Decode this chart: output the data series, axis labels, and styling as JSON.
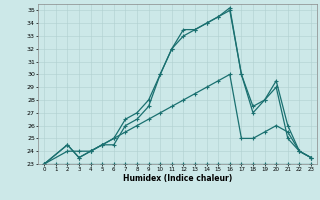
{
  "xlabel": "Humidex (Indice chaleur)",
  "xlim": [
    -0.5,
    23.5
  ],
  "ylim": [
    23,
    35.5
  ],
  "xticks": [
    0,
    1,
    2,
    3,
    4,
    5,
    6,
    7,
    8,
    9,
    10,
    11,
    12,
    13,
    14,
    15,
    16,
    17,
    18,
    19,
    20,
    21,
    22,
    23
  ],
  "yticks": [
    23,
    24,
    25,
    26,
    27,
    28,
    29,
    30,
    31,
    32,
    33,
    34,
    35
  ],
  "background_color": "#cce8e8",
  "grid_color": "#b0d0d0",
  "line_color": "#1a7070",
  "line1_x": [
    0,
    1,
    2,
    3,
    4,
    5,
    6,
    7,
    8,
    9,
    10,
    11,
    12,
    13,
    14,
    15,
    16,
    17,
    18,
    19,
    20,
    21,
    22,
    23
  ],
  "line1_y": [
    23,
    23,
    23,
    23,
    23,
    23,
    23,
    23,
    23,
    23,
    23,
    23,
    23,
    23,
    23,
    23,
    23,
    23,
    23,
    23,
    23,
    23,
    23,
    23
  ],
  "line2_x": [
    0,
    2,
    3,
    4,
    5,
    6,
    7,
    8,
    9,
    10,
    11,
    12,
    13,
    14,
    15,
    16,
    17,
    18,
    19,
    20,
    21,
    22,
    23
  ],
  "line2_y": [
    23,
    24,
    24,
    24,
    24.5,
    25,
    25.5,
    26,
    26.5,
    27,
    27.5,
    28,
    28.5,
    29,
    29.5,
    30,
    25,
    25,
    25.5,
    26,
    25.5,
    24,
    23.5
  ],
  "line3_x": [
    0,
    2,
    3,
    4,
    5,
    6,
    7,
    8,
    9,
    10,
    11,
    12,
    13,
    14,
    15,
    16,
    17,
    18,
    19,
    20,
    21,
    22,
    23
  ],
  "line3_y": [
    23,
    24.5,
    23.5,
    24,
    24.5,
    25,
    26.5,
    27,
    28,
    30,
    32,
    33,
    33.5,
    34,
    34.5,
    35,
    30,
    27.5,
    28,
    29.5,
    26,
    24,
    23.5
  ],
  "line4_x": [
    0,
    2,
    3,
    4,
    5,
    6,
    7,
    8,
    9,
    10,
    11,
    12,
    13,
    14,
    15,
    16,
    17,
    18,
    19,
    20,
    21,
    22,
    23
  ],
  "line4_y": [
    23,
    24.5,
    23.5,
    24,
    24.5,
    24.5,
    26,
    26.5,
    27.5,
    30,
    32,
    33.5,
    33.5,
    34,
    34.5,
    35.2,
    30,
    27,
    28,
    29,
    25,
    24,
    23.5
  ]
}
